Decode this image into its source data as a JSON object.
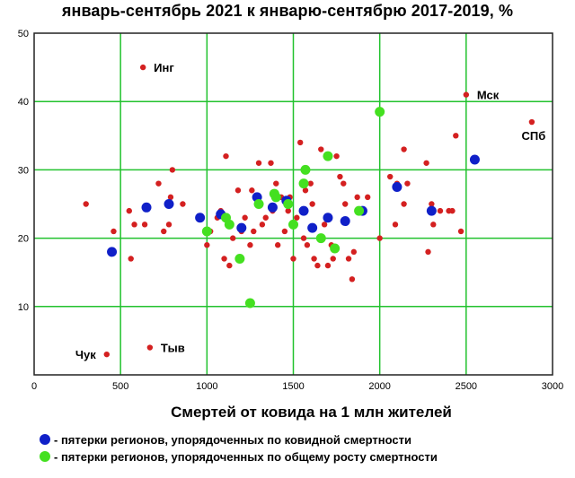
{
  "chart_data": {
    "type": "scatter",
    "title": "январь-сентябрь 2021 к январю-сентябрю 2017-2019, %",
    "xlabel": "Смертей от ковида на 1 млн жителей",
    "ylabel": "",
    "xlim": [
      0,
      3000
    ],
    "ylim": [
      0,
      50
    ],
    "x_ticks": [
      0,
      500,
      1000,
      1500,
      2000,
      2500,
      3000
    ],
    "y_ticks": [
      10,
      20,
      30,
      40,
      50
    ],
    "grid": true,
    "legend_position": "bottom",
    "series": [
      {
        "color": "#d42020",
        "points": [
          [
            300,
            25
          ],
          [
            460,
            21
          ],
          [
            550,
            24
          ],
          [
            560,
            17
          ],
          [
            580,
            22
          ],
          [
            640,
            22
          ],
          [
            720,
            28
          ],
          [
            750,
            21
          ],
          [
            780,
            22
          ],
          [
            790,
            26
          ],
          [
            800,
            30
          ],
          [
            860,
            25
          ],
          [
            1000,
            19
          ],
          [
            1020,
            21
          ],
          [
            1060,
            23
          ],
          [
            1080,
            24
          ],
          [
            1100,
            17
          ],
          [
            1110,
            32
          ],
          [
            1130,
            16
          ],
          [
            1150,
            20
          ],
          [
            1180,
            27
          ],
          [
            1200,
            21
          ],
          [
            1220,
            23
          ],
          [
            1250,
            19
          ],
          [
            1260,
            27
          ],
          [
            1270,
            21
          ],
          [
            1300,
            31
          ],
          [
            1310,
            25
          ],
          [
            1320,
            22
          ],
          [
            1340,
            23
          ],
          [
            1370,
            31
          ],
          [
            1380,
            24
          ],
          [
            1400,
            28
          ],
          [
            1410,
            19
          ],
          [
            1430,
            26
          ],
          [
            1450,
            21
          ],
          [
            1470,
            24
          ],
          [
            1480,
            26
          ],
          [
            1500,
            17
          ],
          [
            1520,
            23
          ],
          [
            1540,
            34
          ],
          [
            1560,
            20
          ],
          [
            1570,
            27
          ],
          [
            1580,
            19
          ],
          [
            1600,
            28
          ],
          [
            1610,
            25
          ],
          [
            1620,
            17
          ],
          [
            1640,
            16
          ],
          [
            1660,
            33
          ],
          [
            1680,
            22
          ],
          [
            1700,
            16
          ],
          [
            1720,
            19
          ],
          [
            1730,
            17
          ],
          [
            1750,
            32
          ],
          [
            1770,
            29
          ],
          [
            1790,
            28
          ],
          [
            1800,
            25
          ],
          [
            1820,
            17
          ],
          [
            1840,
            14
          ],
          [
            1850,
            18
          ],
          [
            1870,
            26
          ],
          [
            1900,
            24
          ],
          [
            1930,
            26
          ],
          [
            2000,
            20
          ],
          [
            2060,
            29
          ],
          [
            2090,
            22
          ],
          [
            2100,
            28
          ],
          [
            2140,
            25
          ],
          [
            2140,
            33
          ],
          [
            2160,
            28
          ],
          [
            2270,
            31
          ],
          [
            2280,
            18
          ],
          [
            2300,
            25
          ],
          [
            2310,
            22
          ],
          [
            2350,
            24
          ],
          [
            2400,
            24
          ],
          [
            2420,
            24
          ],
          [
            2440,
            35
          ],
          [
            2470,
            21
          ]
        ]
      },
      {
        "color": "#1020c8",
        "points": [
          [
            450,
            18
          ],
          [
            650,
            24.5
          ],
          [
            780,
            25
          ],
          [
            960,
            23
          ],
          [
            1080,
            23.5
          ],
          [
            1200,
            21.5
          ],
          [
            1290,
            26
          ],
          [
            1380,
            24.5
          ],
          [
            1460,
            25.5
          ],
          [
            1560,
            24
          ],
          [
            1610,
            21.5
          ],
          [
            1700,
            23
          ],
          [
            1800,
            22.5
          ],
          [
            1900,
            24
          ],
          [
            2100,
            27.5
          ],
          [
            2300,
            24
          ],
          [
            2550,
            31.5
          ]
        ]
      },
      {
        "color": "#44e020",
        "points": [
          [
            1000,
            21
          ],
          [
            1110,
            23
          ],
          [
            1130,
            22
          ],
          [
            1190,
            17
          ],
          [
            1250,
            10.5
          ],
          [
            1300,
            25
          ],
          [
            1390,
            26.5
          ],
          [
            1400,
            26
          ],
          [
            1470,
            25
          ],
          [
            1500,
            22
          ],
          [
            1560,
            28
          ],
          [
            1570,
            30
          ],
          [
            1660,
            20
          ],
          [
            1700,
            32
          ],
          [
            1740,
            18.5
          ],
          [
            1880,
            24
          ],
          [
            2000,
            38.5
          ]
        ]
      }
    ],
    "annotations": [
      {
        "text": "Инг",
        "x": 630,
        "y": 45,
        "color": "#d42020",
        "label_side": "right"
      },
      {
        "text": "Мск",
        "x": 2500,
        "y": 41,
        "color": "#d42020",
        "label_side": "right"
      },
      {
        "text": "СПб",
        "x": 2880,
        "y": 37,
        "color": "#d42020",
        "label_side": "below-left"
      },
      {
        "text": "Чук",
        "x": 420,
        "y": 3,
        "color": "#d42020",
        "label_side": "left"
      },
      {
        "text": "Тыв",
        "x": 670,
        "y": 4,
        "color": "#d42020",
        "label_side": "right"
      }
    ],
    "legend": [
      {
        "text": "- пятерки регионов, упорядоченных по ковидной смертности",
        "color": "#1020c8"
      },
      {
        "text": "- пятерки регионов, упорядоченных по общему росту смертности",
        "color": "#44e020"
      }
    ]
  }
}
